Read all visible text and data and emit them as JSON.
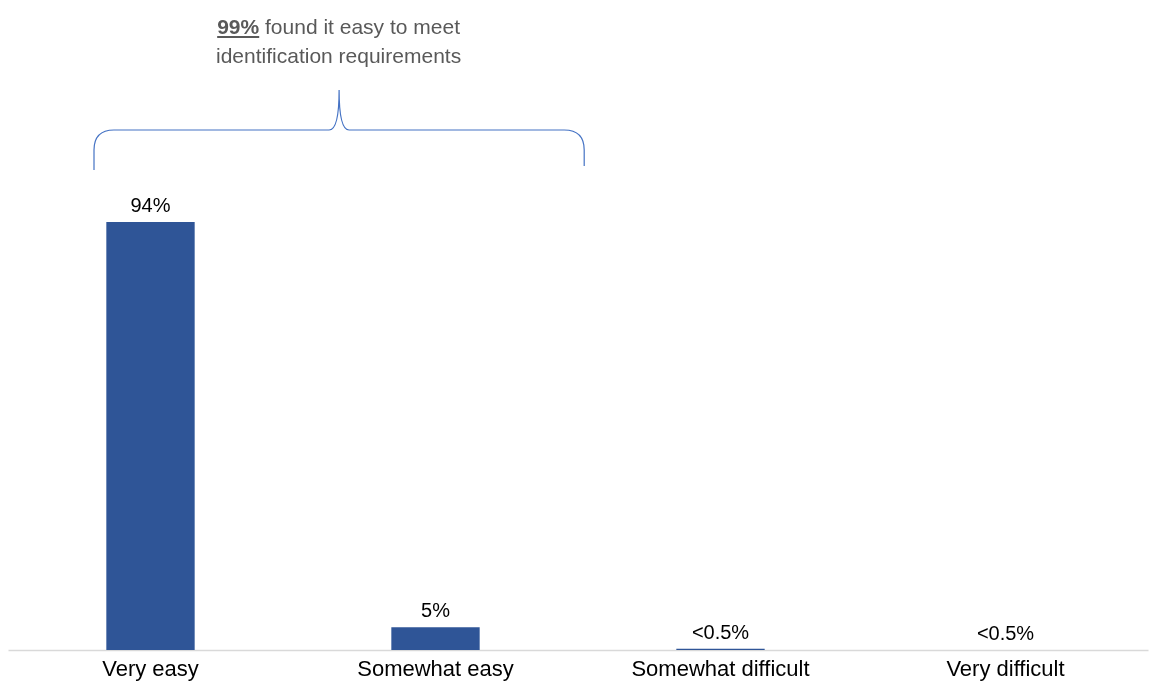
{
  "chart_data": {
    "type": "bar",
    "categories": [
      "Very easy",
      "Somewhat easy",
      "Somewhat difficult",
      "Very difficult"
    ],
    "values": [
      94,
      5,
      0.3,
      0
    ],
    "value_labels": [
      "94%",
      "5%",
      "<0.5%",
      "<0.5%"
    ],
    "color": "#2f5597",
    "annotations": [
      "99% found it easy to meet identification requirements"
    ]
  }
}
